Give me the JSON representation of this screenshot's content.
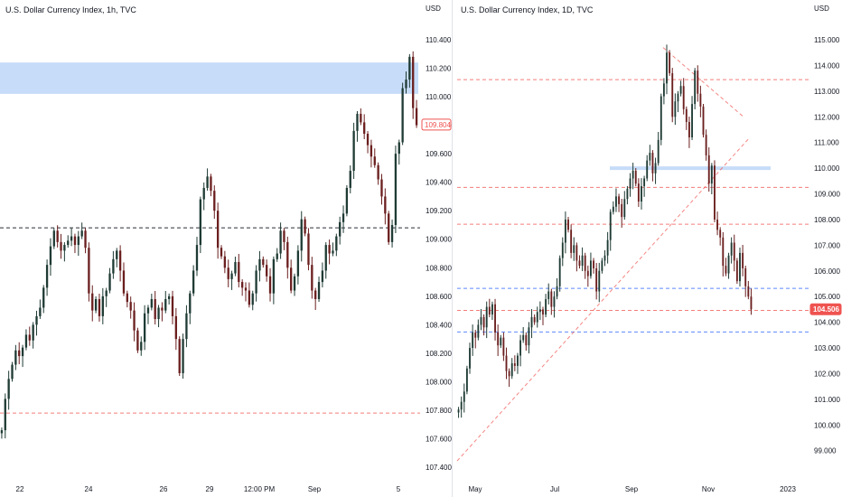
{
  "colors": {
    "up": "#1f3b34",
    "down": "#6b1f1f",
    "grid": "#ffffff",
    "zone": "#bcd6f7",
    "red_dash": "#ef5350",
    "blue_dash": "#2962ff",
    "black_dash": "#131722",
    "axis_text": "#131722"
  },
  "chart_data": [
    {
      "type": "candlestick",
      "title": "U.S. Dollar Currency Index, 1h, TVC",
      "unit_label": "USD",
      "y_ticks": [
        "110.400",
        "110.200",
        "110.000",
        "109.800",
        "109.600",
        "109.400",
        "109.200",
        "109.000",
        "108.800",
        "108.600",
        "108.400",
        "108.200",
        "108.000",
        "107.800",
        "107.600",
        "107.400"
      ],
      "x_ticks": [
        "22",
        "24",
        "26",
        "29",
        "12:00 PM",
        "Sep",
        "5"
      ],
      "ylim": [
        107.35,
        110.52
      ],
      "last_price": "109.804",
      "closes": [
        107.66,
        107.88,
        108.02,
        108.12,
        108.22,
        108.18,
        108.24,
        108.33,
        108.29,
        108.4,
        108.46,
        108.52,
        108.66,
        108.82,
        108.95,
        109.06,
        108.98,
        108.92,
        108.96,
        108.99,
        109.02,
        108.96,
        109.02,
        109.06,
        108.94,
        108.62,
        108.5,
        108.58,
        108.46,
        108.6,
        108.64,
        108.76,
        108.86,
        108.92,
        108.78,
        108.62,
        108.56,
        108.5,
        108.36,
        108.22,
        108.28,
        108.48,
        108.52,
        108.58,
        108.44,
        108.52,
        108.5,
        108.58,
        108.6,
        108.46,
        108.3,
        108.06,
        108.3,
        108.48,
        108.62,
        108.78,
        108.96,
        109.28,
        109.36,
        109.44,
        109.34,
        109.2,
        108.94,
        108.88,
        108.8,
        108.72,
        108.76,
        108.84,
        108.7,
        108.66,
        108.64,
        108.54,
        108.62,
        108.78,
        108.86,
        108.82,
        108.74,
        108.62,
        108.86,
        108.9,
        109.06,
        108.98,
        108.8,
        108.64,
        108.74,
        108.92,
        109.14,
        109.04,
        108.82,
        108.64,
        108.58,
        108.7,
        108.78,
        108.96,
        108.9,
        108.92,
        109.02,
        109.12,
        109.18,
        109.36,
        109.48,
        109.76,
        109.88,
        109.82,
        109.74,
        109.66,
        109.58,
        109.52,
        109.42,
        109.3,
        109.18,
        108.98,
        109.1,
        109.6,
        109.68,
        110.06,
        110.12,
        110.28,
        109.92,
        109.8
      ],
      "zone": [
        110.02,
        110.24
      ],
      "hlines": [
        {
          "price": 109.08,
          "color": "black_dash"
        },
        {
          "price": 107.78,
          "color": "red_dash"
        }
      ]
    },
    {
      "type": "candlestick",
      "title": "U.S. Dollar Currency Index, 1D, TVC",
      "unit_label": "USD",
      "y_ticks": [
        "115.000",
        "114.000",
        "113.000",
        "112.000",
        "111.000",
        "110.000",
        "109.000",
        "108.000",
        "107.000",
        "106.000",
        "105.000",
        "104.000",
        "103.000",
        "102.000",
        "101.000",
        "100.000",
        "99.000"
      ],
      "x_ticks": [
        "May",
        "Jul",
        "Sep",
        "Nov",
        "2023"
      ],
      "ylim": [
        98.25,
        115.6
      ],
      "last_price": "104.506",
      "closes": [
        100.6,
        100.9,
        101.3,
        102.2,
        103.0,
        103.6,
        103.4,
        103.9,
        104.2,
        103.8,
        104.6,
        104.3,
        104.7,
        103.6,
        103.1,
        103.4,
        102.7,
        102.1,
        101.9,
        102.4,
        102.3,
        102.7,
        103.3,
        103.5,
        103.1,
        103.8,
        104.2,
        104.0,
        104.4,
        104.5,
        104.3,
        104.9,
        105.2,
        104.6,
        105.0,
        105.4,
        106.5,
        107.1,
        108.0,
        107.6,
        106.7,
        107.0,
        106.4,
        106.2,
        106.6,
        106.0,
        105.8,
        106.4,
        106.1,
        105.2,
        106.0,
        106.4,
        106.6,
        107.2,
        108.3,
        108.5,
        108.9,
        108.6,
        108.1,
        108.8,
        109.2,
        109.6,
        109.9,
        109.4,
        108.7,
        109.3,
        109.6,
        110.3,
        110.6,
        109.8,
        110.2,
        111.1,
        112.8,
        113.3,
        114.5,
        113.7,
        112.0,
        112.6,
        112.9,
        113.2,
        112.3,
        111.8,
        111.2,
        112.5,
        113.8,
        112.9,
        112.4,
        111.3,
        110.5,
        109.4,
        110.1,
        108.0,
        107.6,
        107.3,
        106.2,
        105.9,
        106.6,
        107.1,
        106.4,
        105.6,
        106.7,
        106.1,
        105.4,
        105.0,
        104.5
      ],
      "zone": [
        109.93,
        110.07
      ],
      "hlines": [
        {
          "price": 113.45,
          "color": "red_dash"
        },
        {
          "price": 109.25,
          "color": "red_dash"
        },
        {
          "price": 107.82,
          "color": "red_dash"
        },
        {
          "price": 105.32,
          "color": "blue_dash"
        },
        {
          "price": 103.62,
          "color": "blue_dash"
        },
        {
          "price": 104.46,
          "color": "red_dash"
        }
      ]
    }
  ]
}
